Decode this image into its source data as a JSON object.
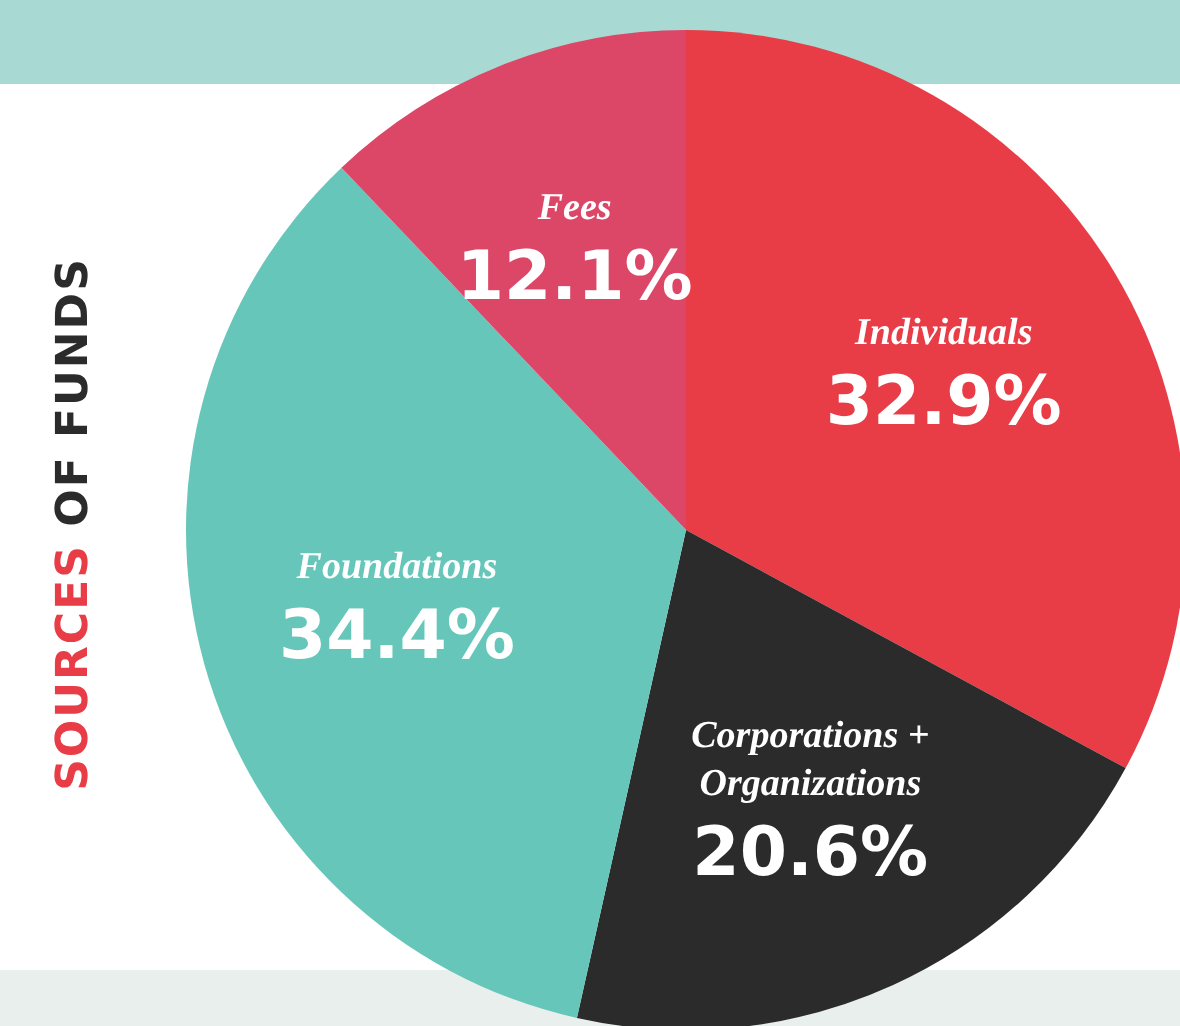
{
  "chart_data": {
    "type": "pie",
    "title": "SOURCES OF FUNDS",
    "categories": [
      "Individuals",
      "Corporations + Organizations",
      "Foundations",
      "Fees"
    ],
    "values": [
      32.9,
      20.6,
      34.4,
      12.1
    ],
    "value_labels": [
      "32.9%",
      "20.6%",
      "34.4%",
      "12.1%"
    ],
    "colors": [
      "#e83c47",
      "#2b2b2b",
      "#66c6b9",
      "#dc4768"
    ],
    "legend": false
  }
}
